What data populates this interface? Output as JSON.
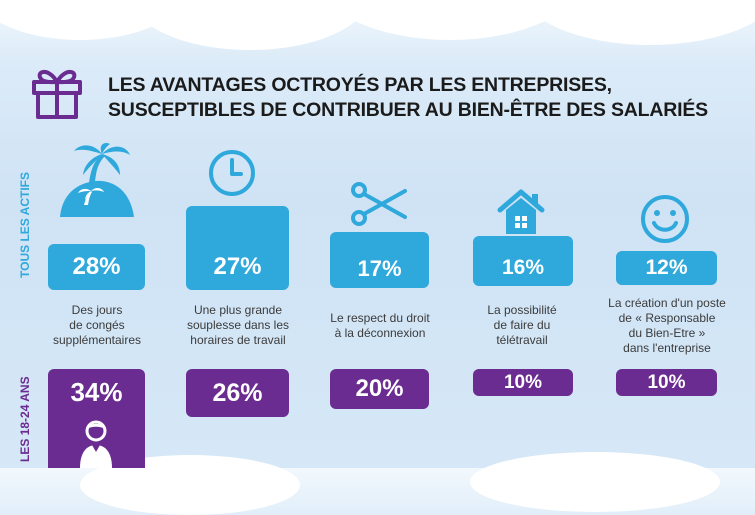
{
  "title": {
    "line1": "LES AVANTAGES OCTROYÉS PAR LES ENTREPRISES,",
    "line2": "SUSCEPTIBLES DE CONTRIBUER AU BIEN-ÊTRE DES SALARIÉS"
  },
  "labels": {
    "all": "TOUS LES ACTIFS",
    "young": "LES 18-24 ANS"
  },
  "colors": {
    "blue": "#2fa8dc",
    "purple": "#6a2c91"
  },
  "items": [
    {
      "all": "28%",
      "young": "34%",
      "desc": [
        "Des jours",
        "de congés",
        "supplémentaires"
      ],
      "icon": "palm-island-icon"
    },
    {
      "all": "27%",
      "young": "26%",
      "desc": [
        "Une plus grande",
        "souplesse dans les",
        "horaires de travail"
      ],
      "icon": "clock-icon"
    },
    {
      "all": "17%",
      "young": "20%",
      "desc": [
        "Le respect du droit",
        "à la déconnexion"
      ],
      "icon": "scissors-icon"
    },
    {
      "all": "16%",
      "young": "10%",
      "desc": [
        "La possibilité",
        "de faire du",
        "télétravail"
      ],
      "icon": "house-icon"
    },
    {
      "all": "12%",
      "young": "10%",
      "desc": [
        "La création d'un poste",
        "de « Responsable",
        "du Bien-Etre »",
        "dans l'entreprise"
      ],
      "icon": "smiley-icon"
    }
  ],
  "chart_data": {
    "type": "bar",
    "categories": [
      "Des jours de congés supplémentaires",
      "Une plus grande souplesse dans les horaires de travail",
      "Le respect du droit à la déconnexion",
      "La possibilité de faire du télétravail",
      "La création d'un poste de « Responsable du Bien-Etre » dans l'entreprise"
    ],
    "series": [
      {
        "name": "TOUS LES ACTIFS",
        "values": [
          28,
          27,
          17,
          16,
          12
        ]
      },
      {
        "name": "LES 18-24 ANS",
        "values": [
          34,
          26,
          20,
          10,
          10
        ]
      }
    ],
    "title": "LES AVANTAGES OCTROYÉS PAR LES ENTREPRISES, SUSCEPTIBLES DE CONTRIBUER AU BIEN-ÊTRE DES SALARIÉS"
  }
}
